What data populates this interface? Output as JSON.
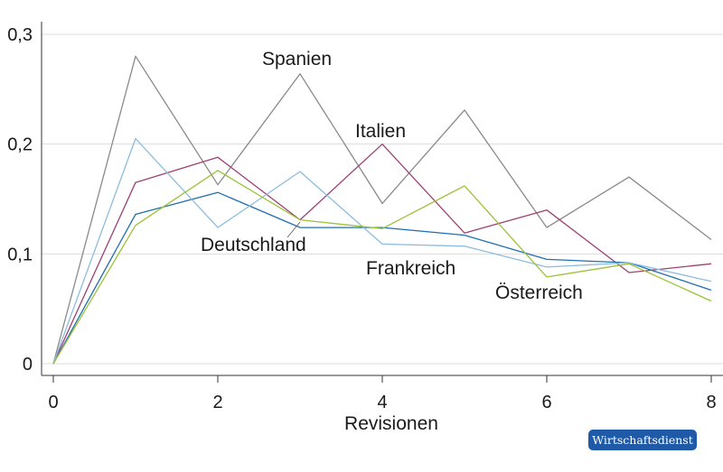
{
  "chart_data": {
    "type": "line",
    "xlabel": "Revisionen",
    "ylabel": "",
    "xlim": [
      0,
      8
    ],
    "ylim": [
      0,
      0.3
    ],
    "xticks": [
      "0",
      "2",
      "4",
      "6",
      "8"
    ],
    "yticks": [
      "0",
      "0,1",
      "0,2",
      "0,3"
    ],
    "grid": "horizontal",
    "x": [
      0,
      1,
      2,
      3,
      4,
      5,
      6,
      7,
      8
    ],
    "series": [
      {
        "name": "Spanien",
        "color": "#8a8a8a",
        "values": [
          0,
          0.28,
          0.163,
          0.264,
          0.146,
          0.231,
          0.124,
          0.17,
          0.113
        ]
      },
      {
        "name": "Italien",
        "color": "#9e3f73",
        "values": [
          0,
          0.165,
          0.188,
          0.131,
          0.2,
          0.119,
          0.14,
          0.083,
          0.091
        ]
      },
      {
        "name": "Deutschland",
        "color": "#1f6fb2",
        "values": [
          0,
          0.136,
          0.156,
          0.124,
          0.124,
          0.117,
          0.095,
          0.092,
          0.067
        ]
      },
      {
        "name": "Frankreich",
        "color": "#8cbcde",
        "values": [
          0,
          0.205,
          0.124,
          0.175,
          0.109,
          0.107,
          0.088,
          0.092,
          0.075
        ]
      },
      {
        "name": "Österreich",
        "color": "#9cc238",
        "values": [
          0,
          0.126,
          0.176,
          0.131,
          0.123,
          0.162,
          0.079,
          0.091,
          0.057
        ]
      }
    ]
  },
  "source_badge": "Wirtschaftsdienst"
}
